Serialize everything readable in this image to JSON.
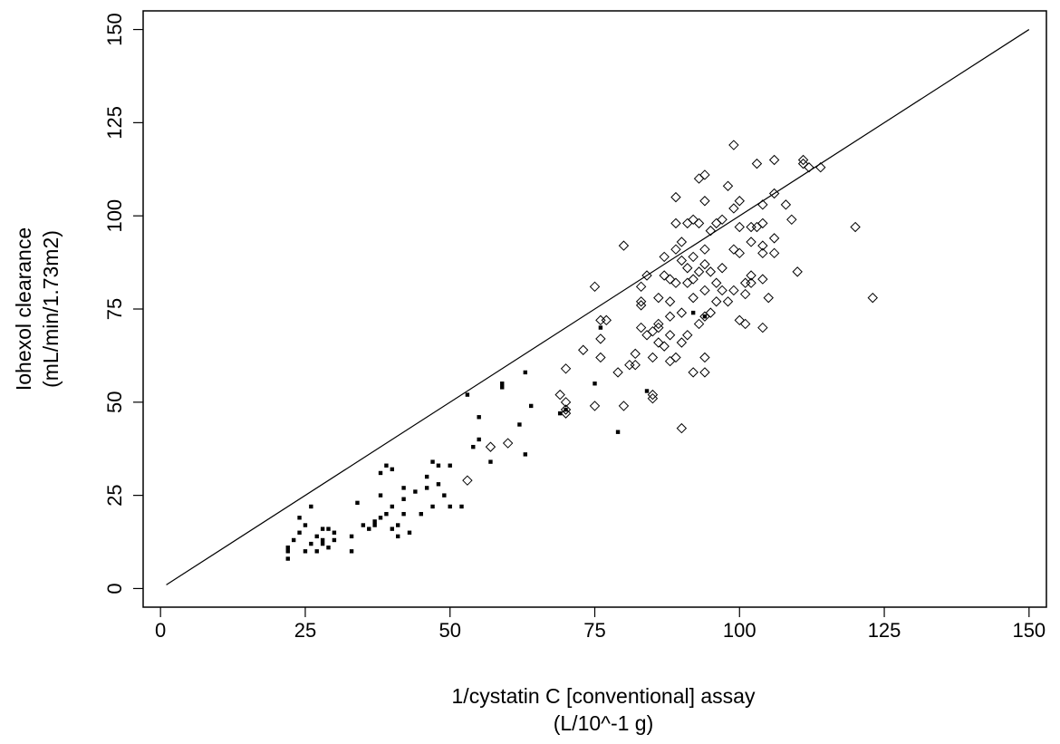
{
  "chart_data": {
    "type": "scatter",
    "x_label": [
      "1/cystatin C [conventional] assay",
      "(L/10^-1 g)"
    ],
    "y_label": [
      "Iohexol clearance",
      "(mL/min/1.73m2)"
    ],
    "xlim": [
      -3,
      153
    ],
    "ylim": [
      -5,
      155
    ],
    "xticks": [
      0,
      25,
      50,
      75,
      100,
      125,
      150
    ],
    "yticks": [
      0,
      25,
      50,
      75,
      100,
      125,
      150
    ],
    "reference_line": {
      "x": [
        1,
        150
      ],
      "y": [
        1,
        150
      ],
      "color": "#000000"
    },
    "series": [
      {
        "marker": "square",
        "color": "#000000",
        "x": [
          22,
          22,
          22,
          23,
          24,
          24,
          25,
          25,
          26,
          26,
          27,
          27,
          28,
          28,
          28,
          29,
          29,
          30,
          30,
          33,
          33,
          34,
          35,
          36,
          37,
          37,
          38,
          38,
          38,
          39,
          39,
          40,
          40,
          40,
          41,
          41,
          42,
          42,
          42,
          43,
          44,
          45,
          46,
          46,
          47,
          47,
          48,
          48,
          49,
          50,
          50,
          52,
          53,
          54,
          55,
          55,
          57,
          59,
          59,
          62,
          63,
          63,
          64,
          69,
          70,
          75,
          76,
          79,
          84,
          92,
          94
        ],
        "values": [
          10,
          8,
          11,
          13,
          15,
          19,
          17,
          10,
          22,
          12,
          10,
          14,
          13,
          16,
          12,
          16,
          11,
          13,
          15,
          10,
          14,
          23,
          17,
          16,
          18,
          17,
          25,
          31,
          19,
          33,
          20,
          32,
          22,
          16,
          17,
          14,
          20,
          27,
          24,
          15,
          26,
          20,
          30,
          27,
          34,
          22,
          28,
          33,
          25,
          33,
          22,
          22,
          52,
          38,
          46,
          40,
          34,
          55,
          54,
          44,
          36,
          58,
          49,
          47,
          48,
          55,
          70,
          42,
          53,
          74,
          73
        ]
      },
      {
        "marker": "diamond",
        "color": "#000000",
        "x": [
          53,
          57,
          60,
          69,
          70,
          70,
          70,
          70,
          73,
          75,
          75,
          76,
          76,
          76,
          77,
          79,
          80,
          80,
          81,
          82,
          82,
          83,
          83,
          83,
          83,
          84,
          84,
          85,
          85,
          85,
          85,
          86,
          86,
          86,
          86,
          87,
          87,
          87,
          88,
          88,
          88,
          88,
          88,
          89,
          89,
          89,
          89,
          89,
          90,
          90,
          90,
          90,
          90,
          91,
          91,
          91,
          91,
          92,
          92,
          92,
          92,
          92,
          93,
          93,
          93,
          93,
          94,
          94,
          94,
          94,
          94,
          94,
          94,
          94,
          95,
          95,
          95,
          96,
          96,
          96,
          97,
          97,
          97,
          98,
          98,
          99,
          99,
          99,
          99,
          100,
          100,
          100,
          100,
          101,
          101,
          101,
          102,
          102,
          102,
          102,
          103,
          103,
          104,
          104,
          104,
          104,
          104,
          104,
          105,
          106,
          106,
          106,
          106,
          108,
          109,
          110,
          111,
          111,
          112,
          114,
          120,
          123
        ],
        "values": [
          29,
          38,
          39,
          52,
          47,
          48,
          50,
          59,
          64,
          81,
          49,
          72,
          67,
          62,
          72,
          58,
          49,
          92,
          60,
          60,
          63,
          77,
          76,
          70,
          81,
          68,
          84,
          69,
          62,
          51,
          52,
          71,
          78,
          70,
          66,
          84,
          89,
          65,
          77,
          83,
          73,
          68,
          61,
          62,
          91,
          82,
          98,
          105,
          93,
          88,
          74,
          66,
          43,
          98,
          86,
          82,
          68,
          99,
          89,
          83,
          78,
          58,
          110,
          98,
          85,
          71,
          111,
          104,
          91,
          87,
          80,
          73,
          62,
          58,
          96,
          85,
          74,
          98,
          82,
          77,
          99,
          86,
          80,
          108,
          77,
          119,
          102,
          91,
          80,
          104,
          97,
          90,
          72,
          82,
          79,
          71,
          97,
          93,
          84,
          82,
          114,
          97,
          103,
          98,
          92,
          90,
          83,
          70,
          78,
          115,
          106,
          94,
          90,
          103,
          99,
          85,
          115,
          114,
          113,
          113,
          97,
          78
        ]
      }
    ]
  }
}
